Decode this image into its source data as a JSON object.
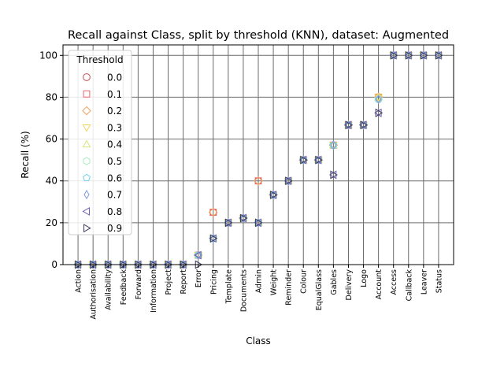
{
  "chart_data": {
    "type": "scatter",
    "title": "Recall against Class, split by threshold (KNN), dataset: Augmented",
    "xlabel": "Class",
    "ylabel": "Recall (%)",
    "ylim": [
      0,
      105
    ],
    "yticks": [
      0,
      20,
      40,
      60,
      80,
      100
    ],
    "grid": true,
    "legend_position": "top-left",
    "legend_title": "Threshold",
    "categories": [
      "Action",
      "Authorisation",
      "Availability",
      "Feedback",
      "Forward",
      "Information",
      "Project",
      "Report",
      "Error",
      "Pricing",
      "Template",
      "Documents",
      "Admin",
      "Weight",
      "Reminder",
      "Colour",
      "EqualGlass",
      "Gables",
      "Delivery",
      "Logo",
      "Account",
      "Access",
      "Callback",
      "Leaver",
      "Status"
    ],
    "series": [
      {
        "name": "0.0",
        "color": "#c44e52",
        "marker": "circle",
        "values": [
          0,
          0,
          0,
          0,
          0,
          0,
          0,
          0,
          4.5,
          25,
          20,
          22.2,
          40,
          33.3,
          40,
          50,
          50,
          57.1,
          66.7,
          66.7,
          80,
          100,
          100,
          100,
          100
        ]
      },
      {
        "name": "0.1",
        "color": "#e8646b",
        "marker": "square",
        "values": [
          0,
          0,
          0,
          0,
          0,
          0,
          0,
          0,
          4.5,
          25,
          20,
          22.2,
          40,
          33.3,
          40,
          50,
          50,
          57.1,
          66.7,
          66.7,
          80,
          100,
          100,
          100,
          100
        ]
      },
      {
        "name": "0.2",
        "color": "#f0a35e",
        "marker": "diamond",
        "values": [
          0,
          0,
          0,
          0,
          0,
          0,
          0,
          0,
          4.5,
          25,
          20,
          22.2,
          40,
          33.3,
          40,
          50,
          50,
          57.1,
          66.7,
          66.7,
          80,
          100,
          100,
          100,
          100
        ]
      },
      {
        "name": "0.3",
        "color": "#f2d45c",
        "marker": "triangle_down",
        "values": [
          0,
          0,
          0,
          0,
          0,
          0,
          0,
          0,
          4.5,
          12.5,
          20,
          22.2,
          20,
          33.3,
          40,
          50,
          50,
          57.1,
          66.7,
          66.7,
          80,
          100,
          100,
          100,
          100
        ]
      },
      {
        "name": "0.4",
        "color": "#d6e87a",
        "marker": "triangle_up",
        "values": [
          0,
          0,
          0,
          0,
          0,
          0,
          0,
          0,
          4.5,
          12.5,
          20,
          22.2,
          20,
          33.3,
          40,
          50,
          50,
          57.1,
          66.7,
          66.7,
          80,
          100,
          100,
          100,
          100
        ]
      },
      {
        "name": "0.5",
        "color": "#a8ecc0",
        "marker": "hexagon",
        "values": [
          0,
          0,
          0,
          0,
          0,
          0,
          0,
          0,
          4.5,
          12.5,
          20,
          22.2,
          20,
          33.3,
          40,
          50,
          50,
          57.1,
          66.7,
          66.7,
          79,
          100,
          100,
          100,
          100
        ]
      },
      {
        "name": "0.6",
        "color": "#6fd2e6",
        "marker": "pentagon",
        "values": [
          0,
          0,
          0,
          0,
          0,
          0,
          0,
          0,
          4.5,
          12.5,
          20,
          22.2,
          20,
          33.3,
          40,
          50,
          50,
          57.1,
          66.7,
          66.7,
          79,
          100,
          100,
          100,
          100
        ]
      },
      {
        "name": "0.7",
        "color": "#7f9ce0",
        "marker": "thin_diamond",
        "values": [
          0,
          0,
          0,
          0,
          0,
          0,
          0,
          0,
          4.5,
          12.5,
          20,
          22.2,
          20,
          33.3,
          40,
          50,
          50,
          57.1,
          66.7,
          66.7,
          79,
          100,
          100,
          100,
          100
        ]
      },
      {
        "name": "0.8",
        "color": "#6a5fb5",
        "marker": "triangle_left",
        "values": [
          0,
          0,
          0,
          0,
          0,
          0,
          0,
          0,
          4.5,
          12.5,
          20,
          22.2,
          20,
          33.3,
          40,
          50,
          50,
          42.9,
          66.7,
          66.7,
          72.5,
          100,
          100,
          100,
          100
        ]
      },
      {
        "name": "0.9",
        "color": "#3a3a5a",
        "marker": "triangle_right",
        "values": [
          0,
          0,
          0,
          0,
          0,
          0,
          0,
          0,
          0,
          12.5,
          20,
          22.2,
          20,
          33.3,
          40,
          50,
          50,
          42.9,
          66.7,
          66.7,
          72.5,
          100,
          100,
          100,
          100
        ]
      }
    ]
  }
}
